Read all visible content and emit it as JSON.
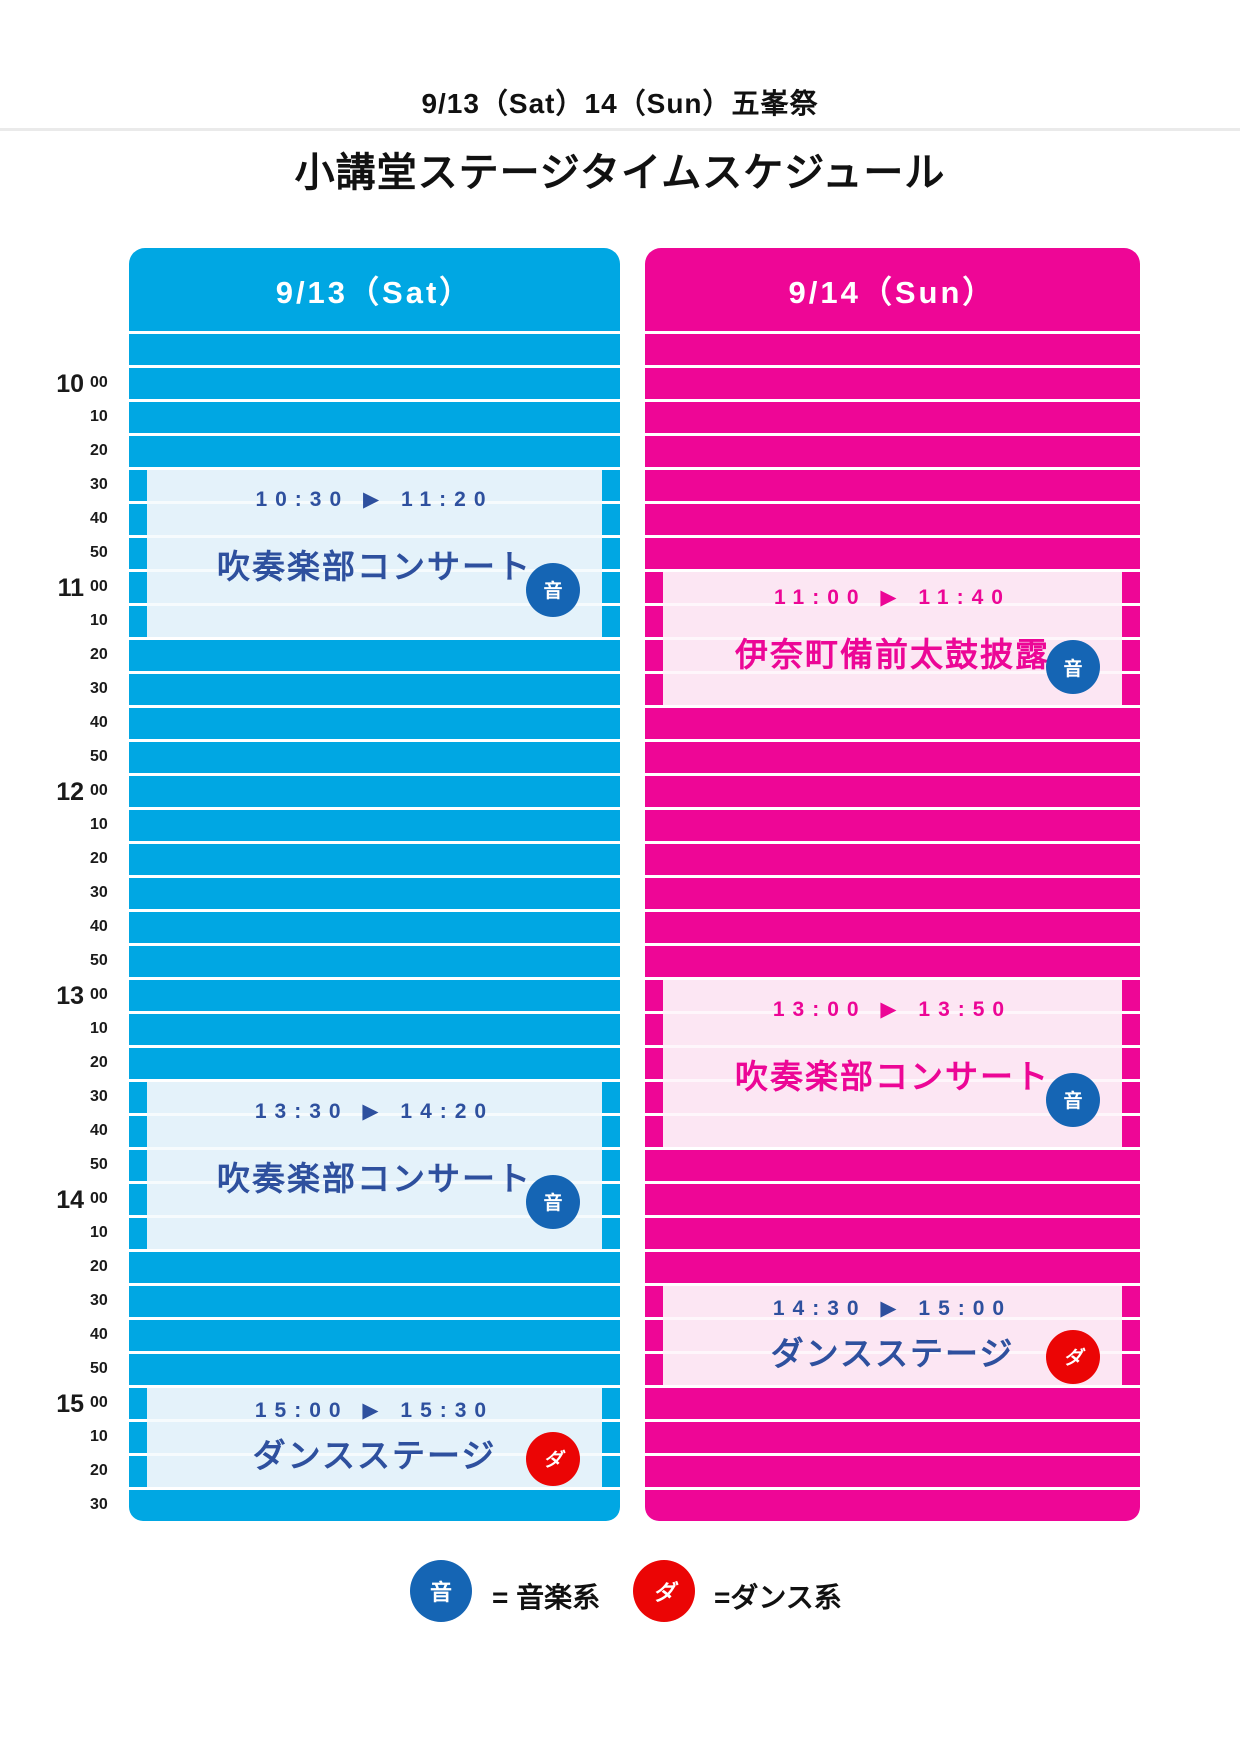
{
  "titles": {
    "top": "9/13（Sat）14（Sun）五峯祭",
    "main": "小講堂ステージタイムスケジュール"
  },
  "days": [
    {
      "key": "sat",
      "label": "9/13（Sat）",
      "column_color": "#00A7E3",
      "event_bg": "#E4F2FA"
    },
    {
      "key": "sun",
      "label": "9/14（Sun）",
      "column_color": "#EE0696",
      "event_bg": "#FCE6F3"
    }
  ],
  "time_rows": [
    {
      "hour": "10",
      "minute": "00"
    },
    {
      "minute": "10"
    },
    {
      "minute": "20"
    },
    {
      "minute": "30"
    },
    {
      "minute": "40"
    },
    {
      "minute": "50"
    },
    {
      "hour": "11",
      "minute": "00"
    },
    {
      "minute": "10"
    },
    {
      "minute": "20"
    },
    {
      "minute": "30"
    },
    {
      "minute": "40"
    },
    {
      "minute": "50"
    },
    {
      "hour": "12",
      "minute": "00"
    },
    {
      "minute": "10"
    },
    {
      "minute": "20"
    },
    {
      "minute": "30"
    },
    {
      "minute": "40"
    },
    {
      "minute": "50"
    },
    {
      "hour": "13",
      "minute": "00"
    },
    {
      "minute": "10"
    },
    {
      "minute": "20"
    },
    {
      "minute": "30"
    },
    {
      "minute": "40"
    },
    {
      "minute": "50"
    },
    {
      "hour": "14",
      "minute": "00"
    },
    {
      "minute": "10"
    },
    {
      "minute": "20"
    },
    {
      "minute": "30"
    },
    {
      "minute": "40"
    },
    {
      "minute": "50"
    },
    {
      "hour": "15",
      "minute": "00"
    },
    {
      "minute": "10"
    },
    {
      "minute": "20"
    },
    {
      "minute": "30"
    }
  ],
  "events": [
    {
      "day": "sat",
      "start": "10:30",
      "end": "11:20",
      "time": "10:30 ▶ 11:20",
      "title": "吹奏楽部コンサート",
      "badge": "音",
      "badge_color": "#1565B4",
      "text_color": "#2E509E"
    },
    {
      "day": "sat",
      "start": "13:30",
      "end": "14:20",
      "time": "13:30 ▶ 14:20",
      "title": "吹奏楽部コンサート",
      "badge": "音",
      "badge_color": "#1565B4",
      "text_color": "#2E509E"
    },
    {
      "day": "sat",
      "start": "15:00",
      "end": "15:30",
      "time": "15:00 ▶ 15:30",
      "title": "ダンスステージ",
      "badge": "ダ",
      "badge_color": "#EB0505",
      "text_color": "#2E509E"
    },
    {
      "day": "sun",
      "start": "11:00",
      "end": "11:40",
      "time": "11:00 ▶ 11:40",
      "title": "伊奈町備前太鼓披露",
      "badge": "音",
      "badge_color": "#1565B4",
      "text_color": "#EC0696"
    },
    {
      "day": "sun",
      "start": "13:00",
      "end": "13:50",
      "time": "13:00 ▶ 13:50",
      "title": "吹奏楽部コンサート",
      "badge": "音",
      "badge_color": "#1565B4",
      "text_color": "#EC0696"
    },
    {
      "day": "sun",
      "start": "14:30",
      "end": "15:00",
      "time": "14:30 ▶ 15:00",
      "title": "ダンスステージ",
      "badge": "ダ",
      "badge_color": "#EB0505",
      "text_color": "#2E509E"
    }
  ],
  "legend": [
    {
      "badge": "音",
      "badge_color": "#1565B4",
      "label": "= 音楽系"
    },
    {
      "badge": "ダ",
      "badge_color": "#EB0505",
      "label": "=ダンス系"
    }
  ]
}
